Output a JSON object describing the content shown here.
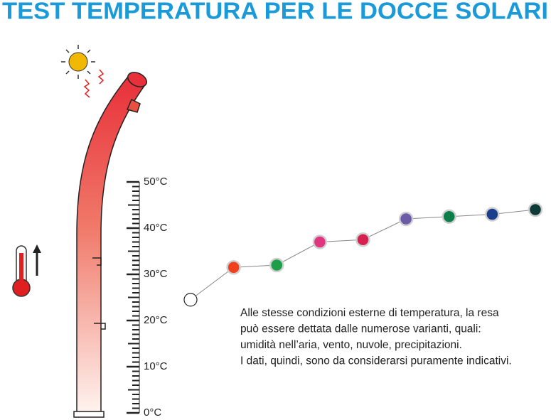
{
  "chart_data": {
    "type": "line",
    "title": "TEST TEMPERATURA PER LE DOCCE SOLARI",
    "categories": [
      null,
      null,
      null,
      null,
      null,
      null,
      null,
      null,
      null
    ],
    "series": [
      {
        "values": [
          24.5,
          31.5,
          32,
          37,
          37.5,
          42,
          42.5,
          43,
          44
        ],
        "colors": [
          "#ffffff",
          "#f0401e",
          "#1e9e48",
          "#e0357f",
          "#d6204f",
          "#6c5ca8",
          "#0c7e4a",
          "#1b3f8c",
          "#0e3b38"
        ],
        "color": "#888888"
      }
    ],
    "ylim": [
      0,
      50
    ],
    "yticks": [
      {
        "value": 0,
        "label": "0°C"
      },
      {
        "value": 10,
        "label": "10°C"
      },
      {
        "value": 20,
        "label": "20°C"
      },
      {
        "value": 30,
        "label": "30°C"
      },
      {
        "value": 40,
        "label": "40°C"
      },
      {
        "value": 50,
        "label": "50°C"
      }
    ],
    "yticks_minor": [
      1,
      2,
      3,
      4,
      5,
      6,
      7,
      8,
      9,
      11,
      12,
      13,
      14,
      15,
      16,
      17,
      18,
      19,
      21,
      22,
      23,
      24,
      25,
      26,
      27,
      28,
      29,
      31,
      32,
      33,
      34,
      35,
      36,
      37,
      38,
      39,
      41,
      42,
      43,
      44,
      45,
      46,
      47,
      48,
      49
    ],
    "note": [
      "Alle stesse condizioni esterne di temperatura, la resa",
      "può essere dettata dalle numerose varianti, quali:",
      "umidità nell’aria, vento, nuvole, precipitazioni.",
      "I dati, quindi, sono da considerarsi puramente indicativi."
    ]
  }
}
